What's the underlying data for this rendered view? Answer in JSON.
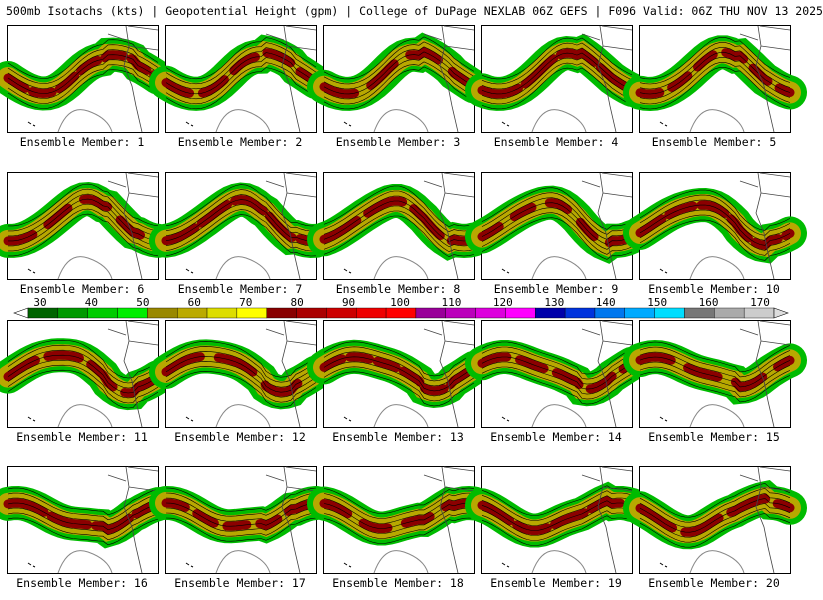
{
  "header": {
    "title": "500mb Isotachs (kts) | Geopotential Height (gpm) | College of DuPage NEXLAB   06Z GEFS | F096 Valid: 06Z THU NOV 13 2025"
  },
  "members": [
    "Ensemble Member: 1",
    "Ensemble Member: 2",
    "Ensemble Member: 3",
    "Ensemble Member: 4",
    "Ensemble Member: 5",
    "Ensemble Member: 6",
    "Ensemble Member: 7",
    "Ensemble Member: 8",
    "Ensemble Member: 9",
    "Ensemble Member: 10",
    "Ensemble Member: 11",
    "Ensemble Member: 12",
    "Ensemble Member: 13",
    "Ensemble Member: 14",
    "Ensemble Member: 15",
    "Ensemble Member: 16",
    "Ensemble Member: 17",
    "Ensemble Member: 18",
    "Ensemble Member: 19",
    "Ensemble Member: 20"
  ],
  "colorbar": {
    "labels": [
      "30",
      "40",
      "50",
      "60",
      "70",
      "80",
      "90",
      "100",
      "110",
      "120",
      "130",
      "140",
      "150",
      "160",
      "170"
    ],
    "colors": [
      "#006400",
      "#009900",
      "#00cc00",
      "#00ee00",
      "#998800",
      "#bbaa00",
      "#dddd00",
      "#ffff00",
      "#880000",
      "#aa0000",
      "#cc0000",
      "#ee0000",
      "#ff0000",
      "#990099",
      "#bb00bb",
      "#dd00dd",
      "#ff00ff",
      "#0000aa",
      "#0033dd",
      "#0077ee",
      "#00aaff",
      "#00ddff",
      "#777777",
      "#aaaaaa",
      "#cccccc"
    ]
  }
}
